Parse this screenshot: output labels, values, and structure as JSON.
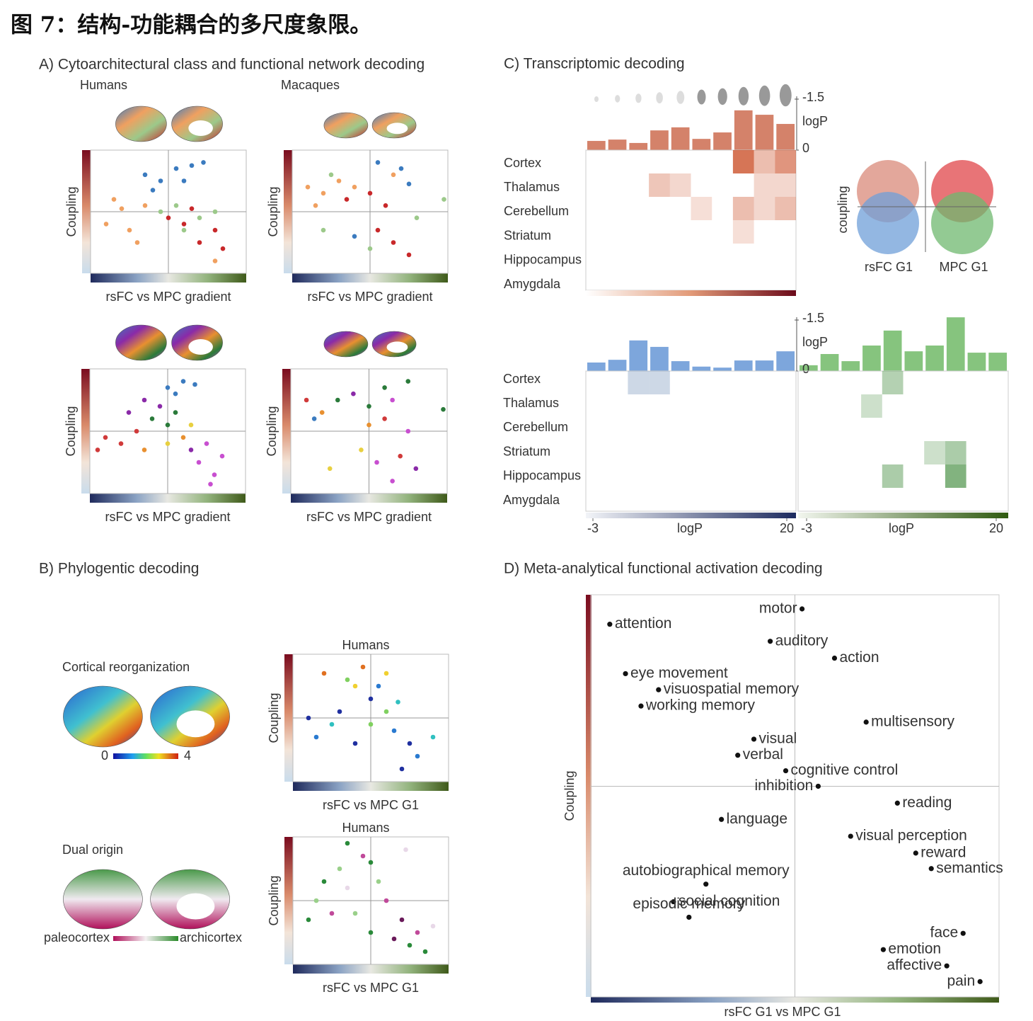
{
  "title": "图 7：结构-功能耦合的多尺度象限。",
  "panel_a": {
    "title": "A) Cytoarchitectural class and functional network decoding",
    "humans": "Humans",
    "macaques": "Macaques",
    "y_label": "Coupling",
    "x_label": "rsFC vs MPC gradient",
    "xlim": [
      -1,
      1
    ],
    "ylim": [
      -1,
      1
    ],
    "scatters": [
      {
        "palette": [
          "#3b7bbf",
          "#f0a060",
          "#9cc98a",
          "#c8282a"
        ],
        "points": [
          [
            -0.3,
            0.6,
            0
          ],
          [
            -0.1,
            0.5,
            0
          ],
          [
            0.1,
            0.7,
            0
          ],
          [
            0.3,
            0.75,
            0
          ],
          [
            0.2,
            0.5,
            0
          ],
          [
            0.45,
            0.8,
            0
          ],
          [
            -0.2,
            0.35,
            0
          ],
          [
            -0.8,
            -0.2,
            1
          ],
          [
            -0.6,
            0.05,
            1
          ],
          [
            -0.5,
            -0.3,
            1
          ],
          [
            -0.3,
            0.1,
            1
          ],
          [
            -0.7,
            0.2,
            1
          ],
          [
            0.6,
            -0.8,
            1
          ],
          [
            -0.4,
            -0.5,
            1
          ],
          [
            0.1,
            0.1,
            2
          ],
          [
            0.4,
            -0.1,
            2
          ],
          [
            0.2,
            -0.3,
            2
          ],
          [
            -0.1,
            0.0,
            2
          ],
          [
            0.6,
            0.0,
            2
          ],
          [
            0.2,
            -0.2,
            3
          ],
          [
            0.4,
            -0.5,
            3
          ],
          [
            0.6,
            -0.3,
            3
          ],
          [
            0.0,
            -0.1,
            3
          ],
          [
            0.7,
            -0.6,
            3
          ],
          [
            0.3,
            0.05,
            3
          ]
        ]
      },
      {
        "palette": [
          "#3b7bbf",
          "#f0a060",
          "#9cc98a",
          "#c8282a"
        ],
        "points": [
          [
            -0.8,
            0.4,
            1
          ],
          [
            -0.6,
            0.3,
            1
          ],
          [
            -0.4,
            0.5,
            1
          ],
          [
            -0.7,
            0.1,
            1
          ],
          [
            -0.2,
            0.4,
            1
          ],
          [
            0.3,
            0.6,
            1
          ],
          [
            0.1,
            0.8,
            0
          ],
          [
            0.4,
            0.7,
            0
          ],
          [
            -0.2,
            -0.4,
            0
          ],
          [
            0.5,
            0.45,
            0
          ],
          [
            -0.3,
            0.2,
            3
          ],
          [
            0.0,
            0.3,
            3
          ],
          [
            0.1,
            -0.3,
            3
          ],
          [
            0.3,
            -0.5,
            3
          ],
          [
            0.5,
            -0.7,
            3
          ],
          [
            0.2,
            0.1,
            3
          ],
          [
            -0.5,
            0.6,
            2
          ],
          [
            0.0,
            -0.6,
            2
          ],
          [
            0.6,
            -0.1,
            2
          ],
          [
            0.95,
            0.2,
            2
          ],
          [
            -0.6,
            -0.3,
            2
          ]
        ]
      },
      {
        "palette": [
          "#3b7bbf",
          "#8a2aa8",
          "#2a7a3a",
          "#d03a3a",
          "#e89030",
          "#e8d040",
          "#c84fd0"
        ],
        "points": [
          [
            0.0,
            0.7,
            0
          ],
          [
            0.2,
            0.8,
            0
          ],
          [
            0.35,
            0.75,
            0
          ],
          [
            0.1,
            0.6,
            0
          ],
          [
            -0.3,
            0.5,
            1
          ],
          [
            -0.5,
            0.3,
            1
          ],
          [
            -0.1,
            0.4,
            1
          ],
          [
            -0.2,
            0.2,
            2
          ],
          [
            0.0,
            0.1,
            2
          ],
          [
            0.1,
            0.3,
            2
          ],
          [
            -0.8,
            -0.1,
            3
          ],
          [
            -0.6,
            -0.2,
            3
          ],
          [
            -0.9,
            -0.3,
            3
          ],
          [
            -0.4,
            0.0,
            3
          ],
          [
            0.2,
            -0.1,
            4
          ],
          [
            -0.3,
            -0.3,
            4
          ],
          [
            0.3,
            0.1,
            5
          ],
          [
            0.0,
            -0.2,
            5
          ],
          [
            0.4,
            -0.5,
            6
          ],
          [
            0.6,
            -0.7,
            6
          ],
          [
            0.7,
            -0.4,
            6
          ],
          [
            0.5,
            -0.2,
            6
          ],
          [
            0.55,
            -0.85,
            6
          ],
          [
            0.3,
            -0.3,
            1
          ]
        ]
      },
      {
        "palette": [
          "#3b7bbf",
          "#8a2aa8",
          "#2a7a3a",
          "#d03a3a",
          "#e89030",
          "#e8d040",
          "#c84fd0"
        ],
        "points": [
          [
            -0.8,
            0.5,
            3
          ],
          [
            -0.6,
            0.3,
            4
          ],
          [
            -0.4,
            0.5,
            2
          ],
          [
            -0.2,
            0.6,
            1
          ],
          [
            0.0,
            0.4,
            2
          ],
          [
            0.2,
            0.7,
            2
          ],
          [
            0.3,
            0.5,
            6
          ],
          [
            0.2,
            0.2,
            3
          ],
          [
            0.0,
            0.1,
            4
          ],
          [
            -0.1,
            -0.3,
            5
          ],
          [
            0.1,
            -0.5,
            6
          ],
          [
            0.4,
            -0.4,
            3
          ],
          [
            0.6,
            -0.6,
            1
          ],
          [
            0.5,
            0.0,
            6
          ],
          [
            -0.5,
            -0.6,
            5
          ],
          [
            0.95,
            0.35,
            2
          ],
          [
            -0.7,
            0.2,
            0
          ],
          [
            0.3,
            -0.8,
            6
          ],
          [
            0.5,
            0.8,
            2
          ]
        ]
      }
    ]
  },
  "panel_b": {
    "title": "B) Phylogentic decoding",
    "cortical_reorganization": "Cortical reorganization",
    "scale_min": 0,
    "scale_max": 4,
    "humans": "Humans",
    "y_label": "Coupling",
    "x_label": "rsFC vs MPC G1",
    "dual_origin": "Dual origin",
    "paleocortex": "paleocortex",
    "archicortex": "archicortex",
    "xlim": [
      -1,
      1
    ],
    "ylim": [
      -1,
      1
    ],
    "scatters": [
      {
        "palette": [
          "#2030a0",
          "#2a7ad0",
          "#30c0c0",
          "#80d060",
          "#f0d030",
          "#e07020"
        ],
        "points": [
          [
            -0.2,
            0.5,
            4
          ],
          [
            -0.6,
            0.7,
            5
          ],
          [
            -0.3,
            0.6,
            3
          ],
          [
            0.0,
            0.3,
            0
          ],
          [
            0.1,
            0.5,
            1
          ],
          [
            -0.4,
            0.1,
            0
          ],
          [
            -0.7,
            -0.3,
            1
          ],
          [
            -0.5,
            -0.1,
            2
          ],
          [
            0.2,
            0.1,
            3
          ],
          [
            0.3,
            -0.2,
            1
          ],
          [
            0.5,
            -0.4,
            0
          ],
          [
            0.6,
            -0.6,
            1
          ],
          [
            0.8,
            -0.3,
            2
          ],
          [
            0.0,
            -0.1,
            3
          ],
          [
            -0.2,
            -0.4,
            0
          ],
          [
            0.4,
            -0.8,
            0
          ],
          [
            -0.1,
            0.8,
            5
          ],
          [
            0.2,
            0.7,
            4
          ],
          [
            0.35,
            0.25,
            2
          ],
          [
            -0.8,
            0.0,
            0
          ]
        ]
      },
      {
        "palette": [
          "#2a8a3a",
          "#9ad08a",
          "#c04a9a",
          "#e8d8e8",
          "#6a1a5a"
        ],
        "points": [
          [
            -0.1,
            0.7,
            2
          ],
          [
            0.0,
            0.6,
            0
          ],
          [
            -0.4,
            0.5,
            1
          ],
          [
            -0.6,
            0.3,
            0
          ],
          [
            -0.3,
            0.2,
            3
          ],
          [
            0.1,
            0.3,
            1
          ],
          [
            -0.8,
            -0.3,
            0
          ],
          [
            -0.5,
            -0.2,
            2
          ],
          [
            0.2,
            0.0,
            2
          ],
          [
            0.4,
            -0.3,
            4
          ],
          [
            0.6,
            -0.5,
            2
          ],
          [
            0.5,
            -0.7,
            0
          ],
          [
            0.8,
            -0.4,
            3
          ],
          [
            0.3,
            -0.6,
            4
          ],
          [
            -0.2,
            -0.2,
            1
          ],
          [
            0.0,
            -0.5,
            0
          ],
          [
            0.45,
            0.8,
            3
          ],
          [
            -0.7,
            0.0,
            1
          ],
          [
            0.7,
            -0.8,
            0
          ],
          [
            -0.3,
            0.9,
            0
          ]
        ]
      }
    ]
  },
  "panel_c": {
    "title": "C) Transcriptomic decoding",
    "regions": [
      "Cortex",
      "Thalamus",
      "Cerebellum",
      "Striatum",
      "Hippocampus",
      "Amygdala"
    ],
    "logp_label": "logP",
    "bar_ylim": [
      0,
      -1.5
    ],
    "bar_yticks": [
      -1.5,
      0
    ],
    "clim": [
      -3,
      20
    ],
    "cticks": [
      -3,
      20
    ],
    "top": {
      "color": "#d4826a",
      "heat_color": "#c8441a",
      "bars": [
        -0.27,
        -0.31,
        -0.21,
        -0.58,
        -0.67,
        -0.33,
        -0.52,
        -1.17,
        -1.04,
        -0.77
      ],
      "heatmap": [
        [
          null,
          null,
          null,
          null,
          null,
          null,
          null,
          14,
          5,
          10
        ],
        [
          null,
          null,
          null,
          4,
          2,
          null,
          null,
          null,
          2,
          2
        ],
        [
          null,
          null,
          null,
          null,
          null,
          1,
          null,
          5,
          2,
          5
        ],
        [
          null,
          null,
          null,
          null,
          null,
          null,
          null,
          1,
          null,
          null
        ],
        [
          null,
          null,
          null,
          null,
          null,
          null,
          null,
          null,
          null,
          null
        ],
        [
          null,
          null,
          null,
          null,
          null,
          null,
          null,
          null,
          null,
          null
        ]
      ]
    },
    "rsfc": {
      "color": "#7da6dc",
      "heat_color": "#6f8fb8",
      "bars": [
        -0.25,
        -0.33,
        -0.9,
        -0.71,
        -0.29,
        -0.13,
        -0.1,
        -0.31,
        -0.31,
        -0.58
      ],
      "heatmap": [
        [
          null,
          null,
          5,
          5,
          null,
          null,
          null,
          null,
          null,
          null
        ],
        [
          null,
          null,
          null,
          null,
          null,
          null,
          null,
          null,
          null,
          null
        ],
        [
          null,
          null,
          null,
          null,
          null,
          null,
          null,
          null,
          null,
          null
        ],
        [
          null,
          null,
          null,
          null,
          null,
          null,
          null,
          null,
          null,
          null
        ],
        [
          null,
          null,
          null,
          null,
          null,
          null,
          null,
          null,
          null,
          null
        ],
        [
          null,
          null,
          null,
          null,
          null,
          null,
          null,
          null,
          null,
          null
        ]
      ]
    },
    "mpc": {
      "color": "#86c47e",
      "heat_color": "#3f8a3a",
      "bars": [
        -0.17,
        -0.5,
        -0.29,
        -0.75,
        -1.19,
        -0.58,
        -0.75,
        -1.58,
        -0.54,
        -0.54
      ],
      "heatmap": [
        [
          null,
          null,
          null,
          null,
          6,
          null,
          null,
          null,
          null,
          null
        ],
        [
          null,
          null,
          null,
          3,
          null,
          null,
          null,
          null,
          null,
          null
        ],
        [
          null,
          null,
          null,
          null,
          null,
          null,
          null,
          null,
          null,
          null
        ],
        [
          null,
          null,
          null,
          null,
          null,
          null,
          3,
          7,
          null,
          null
        ],
        [
          null,
          null,
          null,
          null,
          7,
          null,
          null,
          12,
          null,
          null
        ],
        [
          null,
          null,
          null,
          null,
          null,
          null,
          null,
          null,
          null,
          null
        ]
      ]
    },
    "venn": {
      "y_label": "coupling",
      "x_labels": [
        "rsFC G1",
        "MPC G1"
      ]
    }
  },
  "panel_d": {
    "title": "D) Meta-analytical functional activation decoding",
    "y_label": "Coupling",
    "x_label": "rsFC G1 vs MPC G1",
    "xlim": [
      -1,
      1
    ],
    "ylim": [
      -1.1,
      1
    ],
    "terms": [
      {
        "label": "attention",
        "x": -0.907,
        "y": 0.846,
        "side": "right"
      },
      {
        "label": "motor",
        "x": 0.035,
        "y": 0.926,
        "side": "left"
      },
      {
        "label": "auditory",
        "x": -0.121,
        "y": 0.757,
        "side": "right"
      },
      {
        "label": "action",
        "x": 0.194,
        "y": 0.669,
        "side": "right"
      },
      {
        "label": "eye movement",
        "x": -0.83,
        "y": 0.588,
        "side": "right"
      },
      {
        "label": "visuospatial memory",
        "x": -0.668,
        "y": 0.504,
        "side": "right"
      },
      {
        "label": "working memory",
        "x": -0.754,
        "y": 0.419,
        "side": "right"
      },
      {
        "label": "multisensory",
        "x": 0.349,
        "y": 0.335,
        "side": "right"
      },
      {
        "label": "visual",
        "x": -0.201,
        "y": 0.246,
        "side": "right"
      },
      {
        "label": "verbal",
        "x": -0.28,
        "y": 0.162,
        "side": "right"
      },
      {
        "label": "cognitive control",
        "x": -0.045,
        "y": 0.081,
        "side": "right"
      },
      {
        "label": "inhibition",
        "x": 0.114,
        "y": 0.0,
        "side": "left"
      },
      {
        "label": "reading",
        "x": 0.502,
        "y": -0.088,
        "side": "right"
      },
      {
        "label": "language",
        "x": -0.36,
        "y": -0.173,
        "side": "right"
      },
      {
        "label": "visual perception",
        "x": 0.273,
        "y": -0.261,
        "side": "right"
      },
      {
        "label": "reward",
        "x": 0.592,
        "y": -0.349,
        "side": "right"
      },
      {
        "label": "semantics",
        "x": 0.668,
        "y": -0.43,
        "side": "right"
      },
      {
        "label": "autobiographical memory",
        "x": -0.436,
        "y": -0.511,
        "side": "above"
      },
      {
        "label": "social cognition",
        "x": -0.595,
        "y": -0.603,
        "side": "right"
      },
      {
        "label": "episodic memory",
        "x": -0.519,
        "y": -0.684,
        "side": "above"
      },
      {
        "label": "face",
        "x": 0.824,
        "y": -0.768,
        "side": "left"
      },
      {
        "label": "emotion",
        "x": 0.433,
        "y": -0.853,
        "side": "right"
      },
      {
        "label": "affective",
        "x": 0.744,
        "y": -0.938,
        "side": "left"
      },
      {
        "label": "pain",
        "x": 0.907,
        "y": -1.02,
        "side": "left"
      }
    ]
  }
}
